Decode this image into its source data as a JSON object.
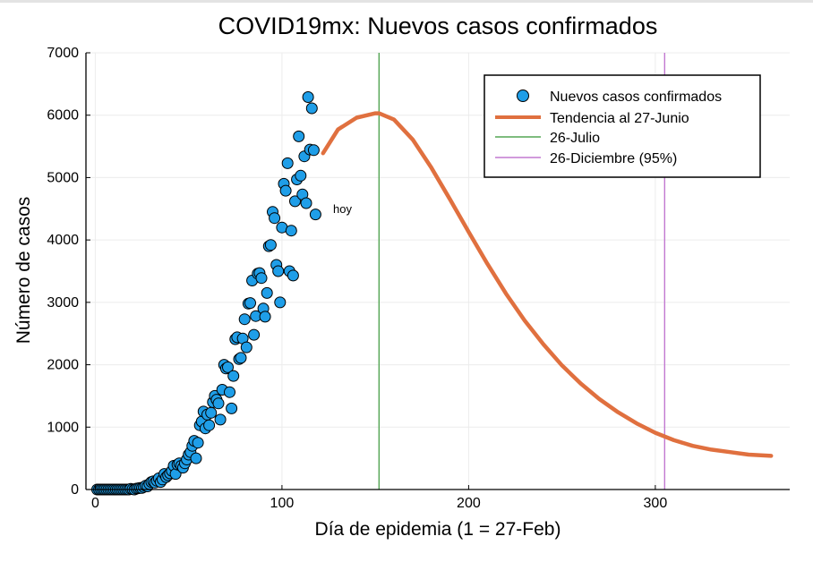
{
  "chart_data": {
    "type": "scatter",
    "title": "COVID19mx: Nuevos casos confirmados",
    "xlabel": "Día de epidemia (1 = 27-Feb)",
    "ylabel": "Número de casos",
    "xlim": [
      -5,
      372
    ],
    "ylim": [
      0,
      7000
    ],
    "xticks": [
      0,
      100,
      200,
      300
    ],
    "yticks": [
      0,
      1000,
      2000,
      3000,
      4000,
      5000,
      6000,
      7000
    ],
    "grid": true,
    "legend_position": "top-right",
    "annotations": [
      {
        "text": "hoy",
        "x": 122,
        "y": 4410
      }
    ],
    "series": [
      {
        "name": "Nuevos casos confirmados",
        "type": "scatter",
        "color": "#1f9ee8",
        "points": [
          [
            1,
            0
          ],
          [
            2,
            0
          ],
          [
            3,
            0
          ],
          [
            4,
            0
          ],
          [
            5,
            0
          ],
          [
            6,
            0
          ],
          [
            7,
            0
          ],
          [
            8,
            0
          ],
          [
            9,
            0
          ],
          [
            10,
            0
          ],
          [
            11,
            0
          ],
          [
            12,
            0
          ],
          [
            13,
            0
          ],
          [
            14,
            0
          ],
          [
            15,
            0
          ],
          [
            16,
            0
          ],
          [
            17,
            0
          ],
          [
            18,
            0
          ],
          [
            19,
            10
          ],
          [
            20,
            5
          ],
          [
            21,
            0
          ],
          [
            22,
            15
          ],
          [
            23,
            20
          ],
          [
            24,
            25
          ],
          [
            25,
            25
          ],
          [
            26,
            40
          ],
          [
            27,
            60
          ],
          [
            28,
            50
          ],
          [
            29,
            90
          ],
          [
            30,
            120
          ],
          [
            31,
            130
          ],
          [
            32,
            110
          ],
          [
            33,
            140
          ],
          [
            34,
            180
          ],
          [
            35,
            120
          ],
          [
            36,
            160
          ],
          [
            37,
            250
          ],
          [
            38,
            200
          ],
          [
            39,
            230
          ],
          [
            40,
            260
          ],
          [
            41,
            300
          ],
          [
            42,
            380
          ],
          [
            43,
            250
          ],
          [
            44,
            400
          ],
          [
            45,
            420
          ],
          [
            46,
            380
          ],
          [
            47,
            350
          ],
          [
            48,
            420
          ],
          [
            49,
            480
          ],
          [
            50,
            560
          ],
          [
            51,
            600
          ],
          [
            52,
            700
          ],
          [
            53,
            780
          ],
          [
            54,
            500
          ],
          [
            55,
            750
          ],
          [
            56,
            1030
          ],
          [
            57,
            1090
          ],
          [
            58,
            1250
          ],
          [
            59,
            980
          ],
          [
            60,
            1200
          ],
          [
            61,
            1030
          ],
          [
            62,
            1230
          ],
          [
            63,
            1400
          ],
          [
            64,
            1500
          ],
          [
            65,
            1440
          ],
          [
            66,
            1380
          ],
          [
            67,
            1120
          ],
          [
            68,
            1600
          ],
          [
            69,
            2000
          ],
          [
            70,
            1940
          ],
          [
            71,
            1960
          ],
          [
            72,
            1560
          ],
          [
            73,
            1300
          ],
          [
            74,
            1820
          ],
          [
            75,
            2410
          ],
          [
            76,
            2440
          ],
          [
            77,
            2090
          ],
          [
            78,
            2110
          ],
          [
            79,
            2420
          ],
          [
            80,
            2730
          ],
          [
            81,
            2280
          ],
          [
            82,
            2980
          ],
          [
            83,
            2990
          ],
          [
            84,
            3350
          ],
          [
            85,
            2480
          ],
          [
            86,
            2780
          ],
          [
            87,
            3460
          ],
          [
            88,
            3470
          ],
          [
            89,
            3390
          ],
          [
            90,
            2900
          ],
          [
            91,
            2770
          ],
          [
            92,
            3150
          ],
          [
            93,
            3900
          ],
          [
            94,
            3920
          ],
          [
            95,
            4450
          ],
          [
            96,
            4350
          ],
          [
            97,
            3600
          ],
          [
            98,
            3500
          ],
          [
            99,
            3000
          ],
          [
            100,
            4200
          ],
          [
            101,
            4900
          ],
          [
            102,
            4790
          ],
          [
            103,
            5230
          ],
          [
            104,
            3500
          ],
          [
            105,
            4150
          ],
          [
            106,
            3430
          ],
          [
            107,
            4620
          ],
          [
            108,
            4970
          ],
          [
            109,
            5660
          ],
          [
            110,
            5030
          ],
          [
            111,
            4730
          ],
          [
            112,
            5340
          ],
          [
            113,
            4590
          ],
          [
            114,
            6290
          ],
          [
            115,
            5450
          ],
          [
            116,
            6110
          ],
          [
            117,
            5440
          ],
          [
            118,
            4410
          ]
        ]
      },
      {
        "name": "Tendencia al 27-Junio",
        "type": "line",
        "color": "#e0703f",
        "x": [
          122,
          130,
          140,
          150,
          152,
          160,
          170,
          180,
          190,
          200,
          210,
          220,
          230,
          240,
          250,
          260,
          270,
          280,
          290,
          300,
          310,
          320,
          330,
          340,
          350,
          362
        ],
        "y": [
          5390,
          5770,
          5960,
          6030,
          6030,
          5930,
          5610,
          5160,
          4650,
          4130,
          3620,
          3140,
          2710,
          2330,
          1990,
          1700,
          1450,
          1240,
          1060,
          910,
          790,
          700,
          640,
          600,
          560,
          540
        ]
      },
      {
        "name": "26-Julio",
        "type": "vline",
        "color": "#53a553",
        "x": 152
      },
      {
        "name": "26-Diciembre (95%)",
        "type": "vline",
        "color": "#c279d1",
        "x": 305
      }
    ]
  }
}
